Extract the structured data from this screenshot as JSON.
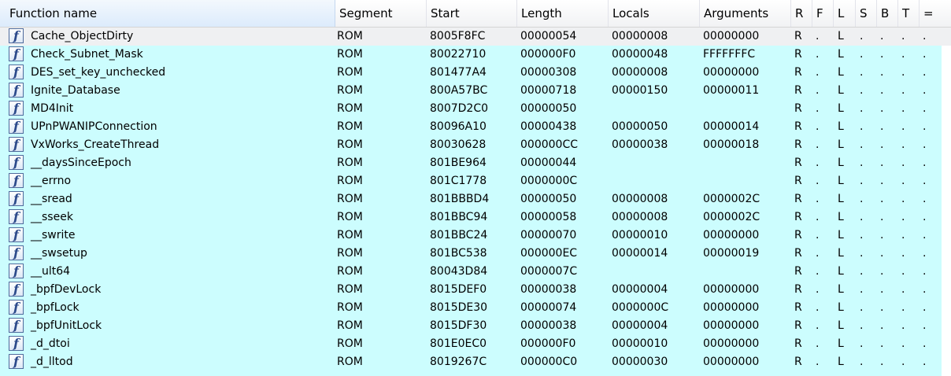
{
  "columns": [
    {
      "key": "name",
      "label": "Function name"
    },
    {
      "key": "segment",
      "label": "Segment"
    },
    {
      "key": "start",
      "label": "Start"
    },
    {
      "key": "length",
      "label": "Length"
    },
    {
      "key": "locals",
      "label": "Locals"
    },
    {
      "key": "arguments",
      "label": "Arguments"
    },
    {
      "key": "r",
      "label": "R"
    },
    {
      "key": "f",
      "label": "F"
    },
    {
      "key": "l",
      "label": "L"
    },
    {
      "key": "s",
      "label": "S"
    },
    {
      "key": "b",
      "label": "B"
    },
    {
      "key": "t",
      "label": "T"
    },
    {
      "key": "eq",
      "label": "="
    }
  ],
  "icon_glyph": "f",
  "icon_name": "function-icon",
  "colors": {
    "row_background": "#ccfdfe",
    "selected_row_background": "#eff0f2",
    "header_sorted_background": "#dcebfc"
  },
  "rows": [
    {
      "name": "Cache_ObjectDirty",
      "segment": "ROM",
      "start": "8005F8FC",
      "length": "00000054",
      "locals": "00000008",
      "arguments": "00000000",
      "r": "R",
      "f": ".",
      "l": "L",
      "s": ".",
      "b": ".",
      "t": ".",
      "eq": ".",
      "selected": true
    },
    {
      "name": "Check_Subnet_Mask",
      "segment": "ROM",
      "start": "80022710",
      "length": "000000F0",
      "locals": "00000048",
      "arguments": "FFFFFFFC",
      "r": "R",
      "f": ".",
      "l": "L",
      "s": ".",
      "b": ".",
      "t": ".",
      "eq": "."
    },
    {
      "name": "DES_set_key_unchecked",
      "segment": "ROM",
      "start": "801477A4",
      "length": "00000308",
      "locals": "00000008",
      "arguments": "00000000",
      "r": "R",
      "f": ".",
      "l": "L",
      "s": ".",
      "b": ".",
      "t": ".",
      "eq": "."
    },
    {
      "name": "Ignite_Database",
      "segment": "ROM",
      "start": "800A57BC",
      "length": "00000718",
      "locals": "00000150",
      "arguments": "00000011",
      "r": "R",
      "f": ".",
      "l": "L",
      "s": ".",
      "b": ".",
      "t": ".",
      "eq": "."
    },
    {
      "name": "MD4Init",
      "segment": "ROM",
      "start": "8007D2C0",
      "length": "00000050",
      "locals": "",
      "arguments": "",
      "r": "R",
      "f": ".",
      "l": "L",
      "s": ".",
      "b": ".",
      "t": ".",
      "eq": "."
    },
    {
      "name": "UPnPWANIPConnection",
      "segment": "ROM",
      "start": "80096A10",
      "length": "00000438",
      "locals": "00000050",
      "arguments": "00000014",
      "r": "R",
      "f": ".",
      "l": "L",
      "s": ".",
      "b": ".",
      "t": ".",
      "eq": "."
    },
    {
      "name": "VxWorks_CreateThread",
      "segment": "ROM",
      "start": "80030628",
      "length": "000000CC",
      "locals": "00000038",
      "arguments": "00000018",
      "r": "R",
      "f": ".",
      "l": "L",
      "s": ".",
      "b": ".",
      "t": ".",
      "eq": "."
    },
    {
      "name": "__daysSinceEpoch",
      "segment": "ROM",
      "start": "801BE964",
      "length": "00000044",
      "locals": "",
      "arguments": "",
      "r": "R",
      "f": ".",
      "l": "L",
      "s": ".",
      "b": ".",
      "t": ".",
      "eq": "."
    },
    {
      "name": "__errno",
      "segment": "ROM",
      "start": "801C1778",
      "length": "0000000C",
      "locals": "",
      "arguments": "",
      "r": "R",
      "f": ".",
      "l": "L",
      "s": ".",
      "b": ".",
      "t": ".",
      "eq": "."
    },
    {
      "name": "__sread",
      "segment": "ROM",
      "start": "801BBBD4",
      "length": "00000050",
      "locals": "00000008",
      "arguments": "0000002C",
      "r": "R",
      "f": ".",
      "l": "L",
      "s": ".",
      "b": ".",
      "t": ".",
      "eq": "."
    },
    {
      "name": "__sseek",
      "segment": "ROM",
      "start": "801BBC94",
      "length": "00000058",
      "locals": "00000008",
      "arguments": "0000002C",
      "r": "R",
      "f": ".",
      "l": "L",
      "s": ".",
      "b": ".",
      "t": ".",
      "eq": "."
    },
    {
      "name": "__swrite",
      "segment": "ROM",
      "start": "801BBC24",
      "length": "00000070",
      "locals": "00000010",
      "arguments": "00000000",
      "r": "R",
      "f": ".",
      "l": "L",
      "s": ".",
      "b": ".",
      "t": ".",
      "eq": "."
    },
    {
      "name": "__swsetup",
      "segment": "ROM",
      "start": "801BC538",
      "length": "000000EC",
      "locals": "00000014",
      "arguments": "00000019",
      "r": "R",
      "f": ".",
      "l": "L",
      "s": ".",
      "b": ".",
      "t": ".",
      "eq": "."
    },
    {
      "name": "__ult64",
      "segment": "ROM",
      "start": "80043D84",
      "length": "0000007C",
      "locals": "",
      "arguments": "",
      "r": "R",
      "f": ".",
      "l": "L",
      "s": ".",
      "b": ".",
      "t": ".",
      "eq": "."
    },
    {
      "name": "_bpfDevLock",
      "segment": "ROM",
      "start": "8015DEF0",
      "length": "00000038",
      "locals": "00000004",
      "arguments": "00000000",
      "r": "R",
      "f": ".",
      "l": "L",
      "s": ".",
      "b": ".",
      "t": ".",
      "eq": "."
    },
    {
      "name": "_bpfLock",
      "segment": "ROM",
      "start": "8015DE30",
      "length": "00000074",
      "locals": "0000000C",
      "arguments": "00000000",
      "r": "R",
      "f": ".",
      "l": "L",
      "s": ".",
      "b": ".",
      "t": ".",
      "eq": "."
    },
    {
      "name": "_bpfUnitLock",
      "segment": "ROM",
      "start": "8015DF30",
      "length": "00000038",
      "locals": "00000004",
      "arguments": "00000000",
      "r": "R",
      "f": ".",
      "l": "L",
      "s": ".",
      "b": ".",
      "t": ".",
      "eq": "."
    },
    {
      "name": "_d_dtoi",
      "segment": "ROM",
      "start": "801E0EC0",
      "length": "000000F0",
      "locals": "00000010",
      "arguments": "00000000",
      "r": "R",
      "f": ".",
      "l": "L",
      "s": ".",
      "b": ".",
      "t": ".",
      "eq": "."
    },
    {
      "name": "_d_lltod",
      "segment": "ROM",
      "start": "8019267C",
      "length": "000000C0",
      "locals": "00000030",
      "arguments": "00000000",
      "r": "R",
      "f": ".",
      "l": "L",
      "s": ".",
      "b": ".",
      "t": ".",
      "eq": "."
    }
  ]
}
